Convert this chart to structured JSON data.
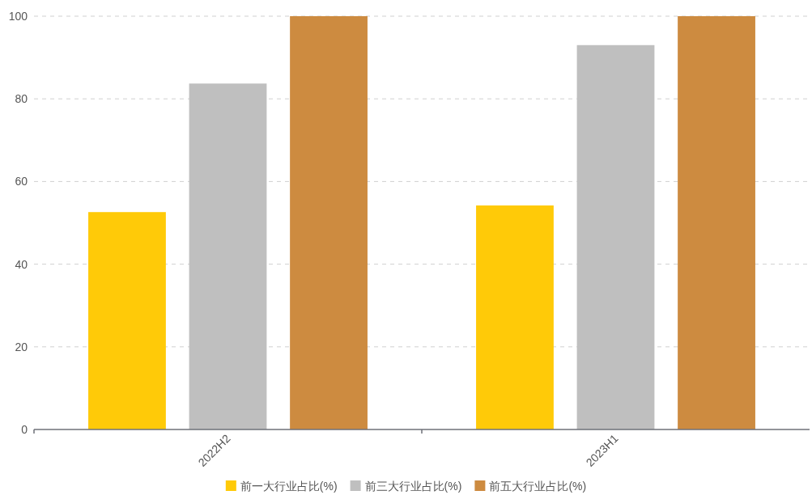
{
  "chart_data": {
    "type": "bar",
    "categories": [
      "2022H2",
      "2023H1"
    ],
    "series": [
      {
        "name": "前一大行业占比(%)",
        "color": "#ffca08",
        "values": [
          52.6,
          54.2
        ]
      },
      {
        "name": "前三大行业占比(%)",
        "color": "#bfbfbf",
        "values": [
          83.7,
          93.0
        ]
      },
      {
        "name": "前五大行业占比(%)",
        "color": "#cd8b40",
        "values": [
          100,
          100
        ]
      }
    ],
    "ylim": [
      0,
      100
    ],
    "yticks": [
      0,
      20,
      40,
      60,
      80,
      100
    ],
    "grid": "y",
    "legend": "bottom"
  }
}
